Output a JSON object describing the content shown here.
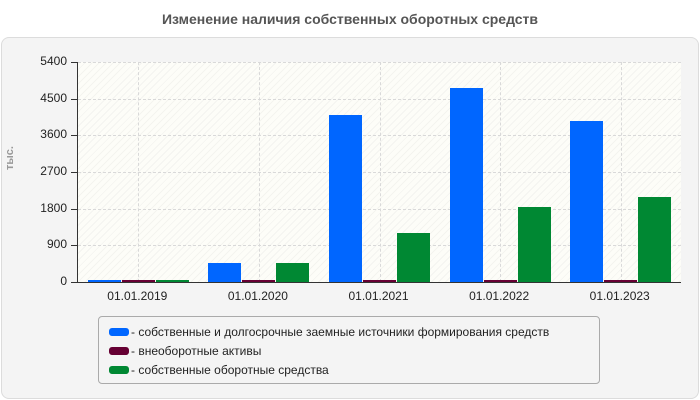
{
  "chart_data": {
    "type": "bar",
    "title": "Изменение наличия собственных оборотных средств",
    "xlabel": "",
    "ylabel": "тыс.",
    "ylim": [
      0,
      5400
    ],
    "yticks": [
      0,
      900,
      1800,
      2700,
      3600,
      4500,
      5400
    ],
    "grid": true,
    "legend_position": "bottom",
    "categories": [
      "01.01.2019",
      "01.01.2020",
      "01.01.2021",
      "01.01.2022",
      "01.01.2023"
    ],
    "series": [
      {
        "name": "собственные и долгосрочные заемные источники формирования средств",
        "color": "#0066ff",
        "values": [
          55,
          478,
          4110,
          4750,
          3940
        ]
      },
      {
        "name": "внеоборотные активы",
        "color": "#660033",
        "values": [
          15,
          15,
          15,
          15,
          15
        ]
      },
      {
        "name": "собственные оборотные средства",
        "color": "#008833",
        "values": [
          60,
          470,
          1215,
          1830,
          2075
        ]
      }
    ]
  },
  "legend": {
    "items": [
      {
        "label": "- собственные и долгосрочные заемные источники формирования средств",
        "color": "#0066ff"
      },
      {
        "label": "- внеоборотные активы",
        "color": "#660033"
      },
      {
        "label": "- собственные оборотные средства",
        "color": "#008833"
      }
    ]
  }
}
